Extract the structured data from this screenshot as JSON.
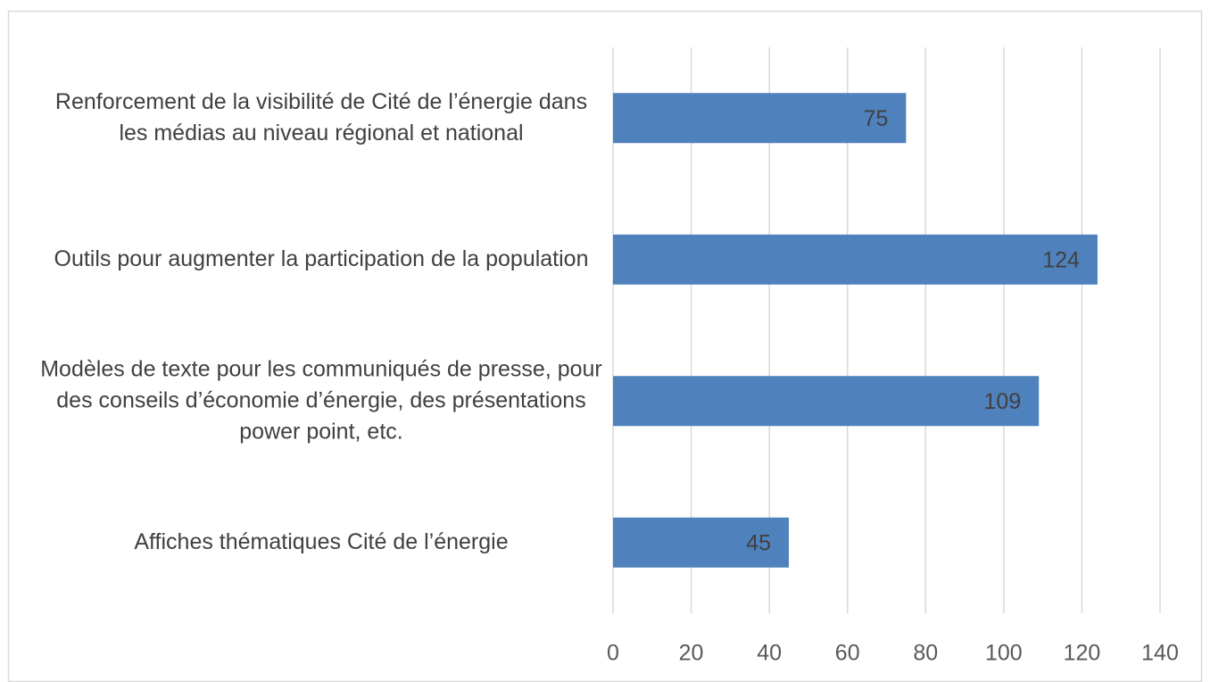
{
  "chart_data": {
    "type": "bar",
    "orientation": "horizontal",
    "categories": [
      "Renforcement de la visibilité de Cité de l’énergie dans les médias au niveau régional et national",
      "Outils pour augmenter la participation de la population",
      "Modèles de texte pour les communiqués de presse, pour des conseils d’économie d’énergie, des présentations power point, etc.",
      "Affiches thématiques Cité de l’énergie"
    ],
    "values": [
      75,
      124,
      109,
      45
    ],
    "color": "#4f81bd",
    "xlim": [
      0,
      140
    ],
    "xticks": [
      0,
      20,
      40,
      60,
      80,
      100,
      120,
      140
    ],
    "grid": true
  }
}
